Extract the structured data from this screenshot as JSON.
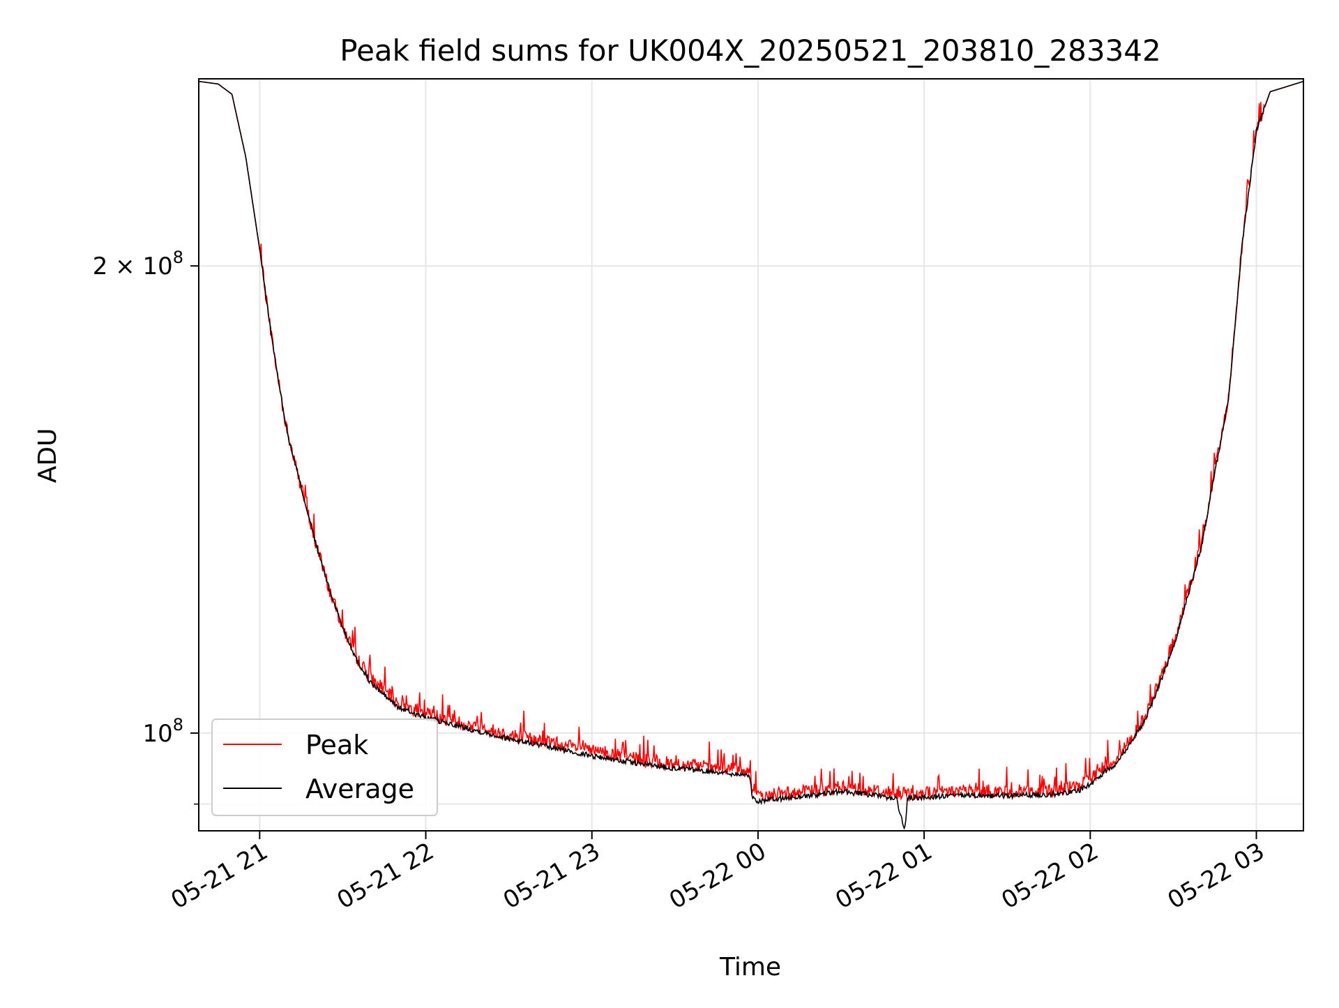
{
  "chart_data": {
    "type": "line",
    "title": "Peak field sums for UK004X_20250521_203810_283342",
    "xlabel": "Time",
    "ylabel": "ADU",
    "yscale": "log",
    "xlim": [
      "2025-05-21 20:38",
      "2025-05-22 03:17"
    ],
    "ylim": [
      86500000,
      264000000
    ],
    "grid": true,
    "legend_position": "lower left",
    "x_ticks": [
      {
        "value": "2025-05-21 21:00",
        "label": "05-21 21"
      },
      {
        "value": "2025-05-21 22:00",
        "label": "05-21 22"
      },
      {
        "value": "2025-05-21 23:00",
        "label": "05-21 23"
      },
      {
        "value": "2025-05-22 00:00",
        "label": "05-22 00"
      },
      {
        "value": "2025-05-22 01:00",
        "label": "05-22 01"
      },
      {
        "value": "2025-05-22 02:00",
        "label": "05-22 02"
      },
      {
        "value": "2025-05-22 03:00",
        "label": "05-22 03"
      }
    ],
    "y_ticks": [
      {
        "value": 100000000,
        "mantissa": "10",
        "exponent": "8"
      },
      {
        "value": 200000000,
        "mantissa": "2 × 10",
        "exponent": "8"
      }
    ],
    "series": [
      {
        "name": "Peak",
        "color": "#ff0000",
        "points": [
          [
            "2025-05-21 20:38",
            263000000
          ],
          [
            "2025-05-21 20:45",
            262000000
          ],
          [
            "2025-05-21 20:50",
            258000000
          ],
          [
            "2025-05-21 20:55",
            235000000
          ],
          [
            "2025-05-21 21:00",
            205000000
          ],
          [
            "2025-05-21 21:03",
            187000000
          ],
          [
            "2025-05-21 21:06",
            172000000
          ],
          [
            "2025-05-21 21:10",
            156000000
          ],
          [
            "2025-05-21 21:15",
            144000000
          ],
          [
            "2025-05-21 21:20",
            133000000
          ],
          [
            "2025-05-21 21:25",
            124000000
          ],
          [
            "2025-05-21 21:30",
            117000000
          ],
          [
            "2025-05-21 21:35",
            112000000
          ],
          [
            "2025-05-21 21:40",
            108500000
          ],
          [
            "2025-05-21 21:50",
            104500000
          ],
          [
            "2025-05-21 22:00",
            103000000
          ],
          [
            "2025-05-21 22:15",
            101300000
          ],
          [
            "2025-05-21 22:30",
            99800000
          ],
          [
            "2025-05-21 22:45",
            98600000
          ],
          [
            "2025-05-21 23:00",
            97400000
          ],
          [
            "2025-05-21 23:15",
            96300000
          ],
          [
            "2025-05-21 23:30",
            95500000
          ],
          [
            "2025-05-21 23:45",
            95000000
          ],
          [
            "2025-05-21 23:57",
            94500000
          ],
          [
            "2025-05-21 23:58",
            91500000
          ],
          [
            "2025-05-22 00:00",
            91000000
          ],
          [
            "2025-05-22 00:10",
            91400000
          ],
          [
            "2025-05-22 00:20",
            91800000
          ],
          [
            "2025-05-22 00:30",
            92300000
          ],
          [
            "2025-05-22 00:40",
            92000000
          ],
          [
            "2025-05-22 00:50",
            91300000
          ],
          [
            "2025-05-22 01:00",
            91500000
          ],
          [
            "2025-05-22 01:15",
            91800000
          ],
          [
            "2025-05-22 01:30",
            91700000
          ],
          [
            "2025-05-22 01:45",
            91900000
          ],
          [
            "2025-05-22 01:55",
            92300000
          ],
          [
            "2025-05-22 02:00",
            93300000
          ],
          [
            "2025-05-22 02:10",
            96500000
          ],
          [
            "2025-05-22 02:20",
            102500000
          ],
          [
            "2025-05-22 02:30",
            114000000
          ],
          [
            "2025-05-22 02:40",
            132000000
          ],
          [
            "2025-05-22 02:50",
            165000000
          ],
          [
            "2025-05-22 02:55",
            208000000
          ],
          [
            "2025-05-22 03:00",
            245000000
          ],
          [
            "2025-05-22 03:05",
            259000000
          ],
          [
            "2025-05-22 03:17",
            263000000
          ]
        ]
      },
      {
        "name": "Average",
        "color": "#000000",
        "points": [
          [
            "2025-05-21 20:38",
            263000000
          ],
          [
            "2025-05-21 20:45",
            262000000
          ],
          [
            "2025-05-21 20:50",
            258000000
          ],
          [
            "2025-05-21 20:55",
            235000000
          ],
          [
            "2025-05-21 21:00",
            205000000
          ],
          [
            "2025-05-21 21:03",
            187000000
          ],
          [
            "2025-05-21 21:06",
            172000000
          ],
          [
            "2025-05-21 21:10",
            156000000
          ],
          [
            "2025-05-21 21:15",
            144000000
          ],
          [
            "2025-05-21 21:20",
            133000000
          ],
          [
            "2025-05-21 21:25",
            124000000
          ],
          [
            "2025-05-21 21:30",
            117000000
          ],
          [
            "2025-05-21 21:35",
            111500000
          ],
          [
            "2025-05-21 21:40",
            107800000
          ],
          [
            "2025-05-21 21:50",
            103900000
          ],
          [
            "2025-05-21 22:00",
            102300000
          ],
          [
            "2025-05-21 22:15",
            100700000
          ],
          [
            "2025-05-21 22:30",
            99200000
          ],
          [
            "2025-05-21 22:45",
            97900000
          ],
          [
            "2025-05-21 23:00",
            96700000
          ],
          [
            "2025-05-21 23:15",
            95700000
          ],
          [
            "2025-05-21 23:30",
            94900000
          ],
          [
            "2025-05-21 23:45",
            94400000
          ],
          [
            "2025-05-21 23:57",
            93900000
          ],
          [
            "2025-05-21 23:58",
            90800000
          ],
          [
            "2025-05-22 00:00",
            90400000
          ],
          [
            "2025-05-22 00:10",
            90800000
          ],
          [
            "2025-05-22 00:20",
            91200000
          ],
          [
            "2025-05-22 00:30",
            91700000
          ],
          [
            "2025-05-22 00:40",
            91300000
          ],
          [
            "2025-05-22 00:50",
            90700000
          ],
          [
            "2025-05-22 00:53",
            86500000
          ],
          [
            "2025-05-22 00:54",
            90800000
          ],
          [
            "2025-05-22 01:00",
            90900000
          ],
          [
            "2025-05-22 01:15",
            91200000
          ],
          [
            "2025-05-22 01:30",
            91100000
          ],
          [
            "2025-05-22 01:45",
            91300000
          ],
          [
            "2025-05-22 01:55",
            91700000
          ],
          [
            "2025-05-22 02:00",
            92700000
          ],
          [
            "2025-05-22 02:10",
            95900000
          ],
          [
            "2025-05-22 02:20",
            102000000
          ],
          [
            "2025-05-22 02:30",
            113500000
          ],
          [
            "2025-05-22 02:40",
            131500000
          ],
          [
            "2025-05-22 02:50",
            164500000
          ],
          [
            "2025-05-22 02:55",
            207500000
          ],
          [
            "2025-05-22 03:00",
            244500000
          ],
          [
            "2025-05-22 03:05",
            259000000
          ],
          [
            "2025-05-22 03:17",
            263000000
          ]
        ]
      }
    ]
  }
}
